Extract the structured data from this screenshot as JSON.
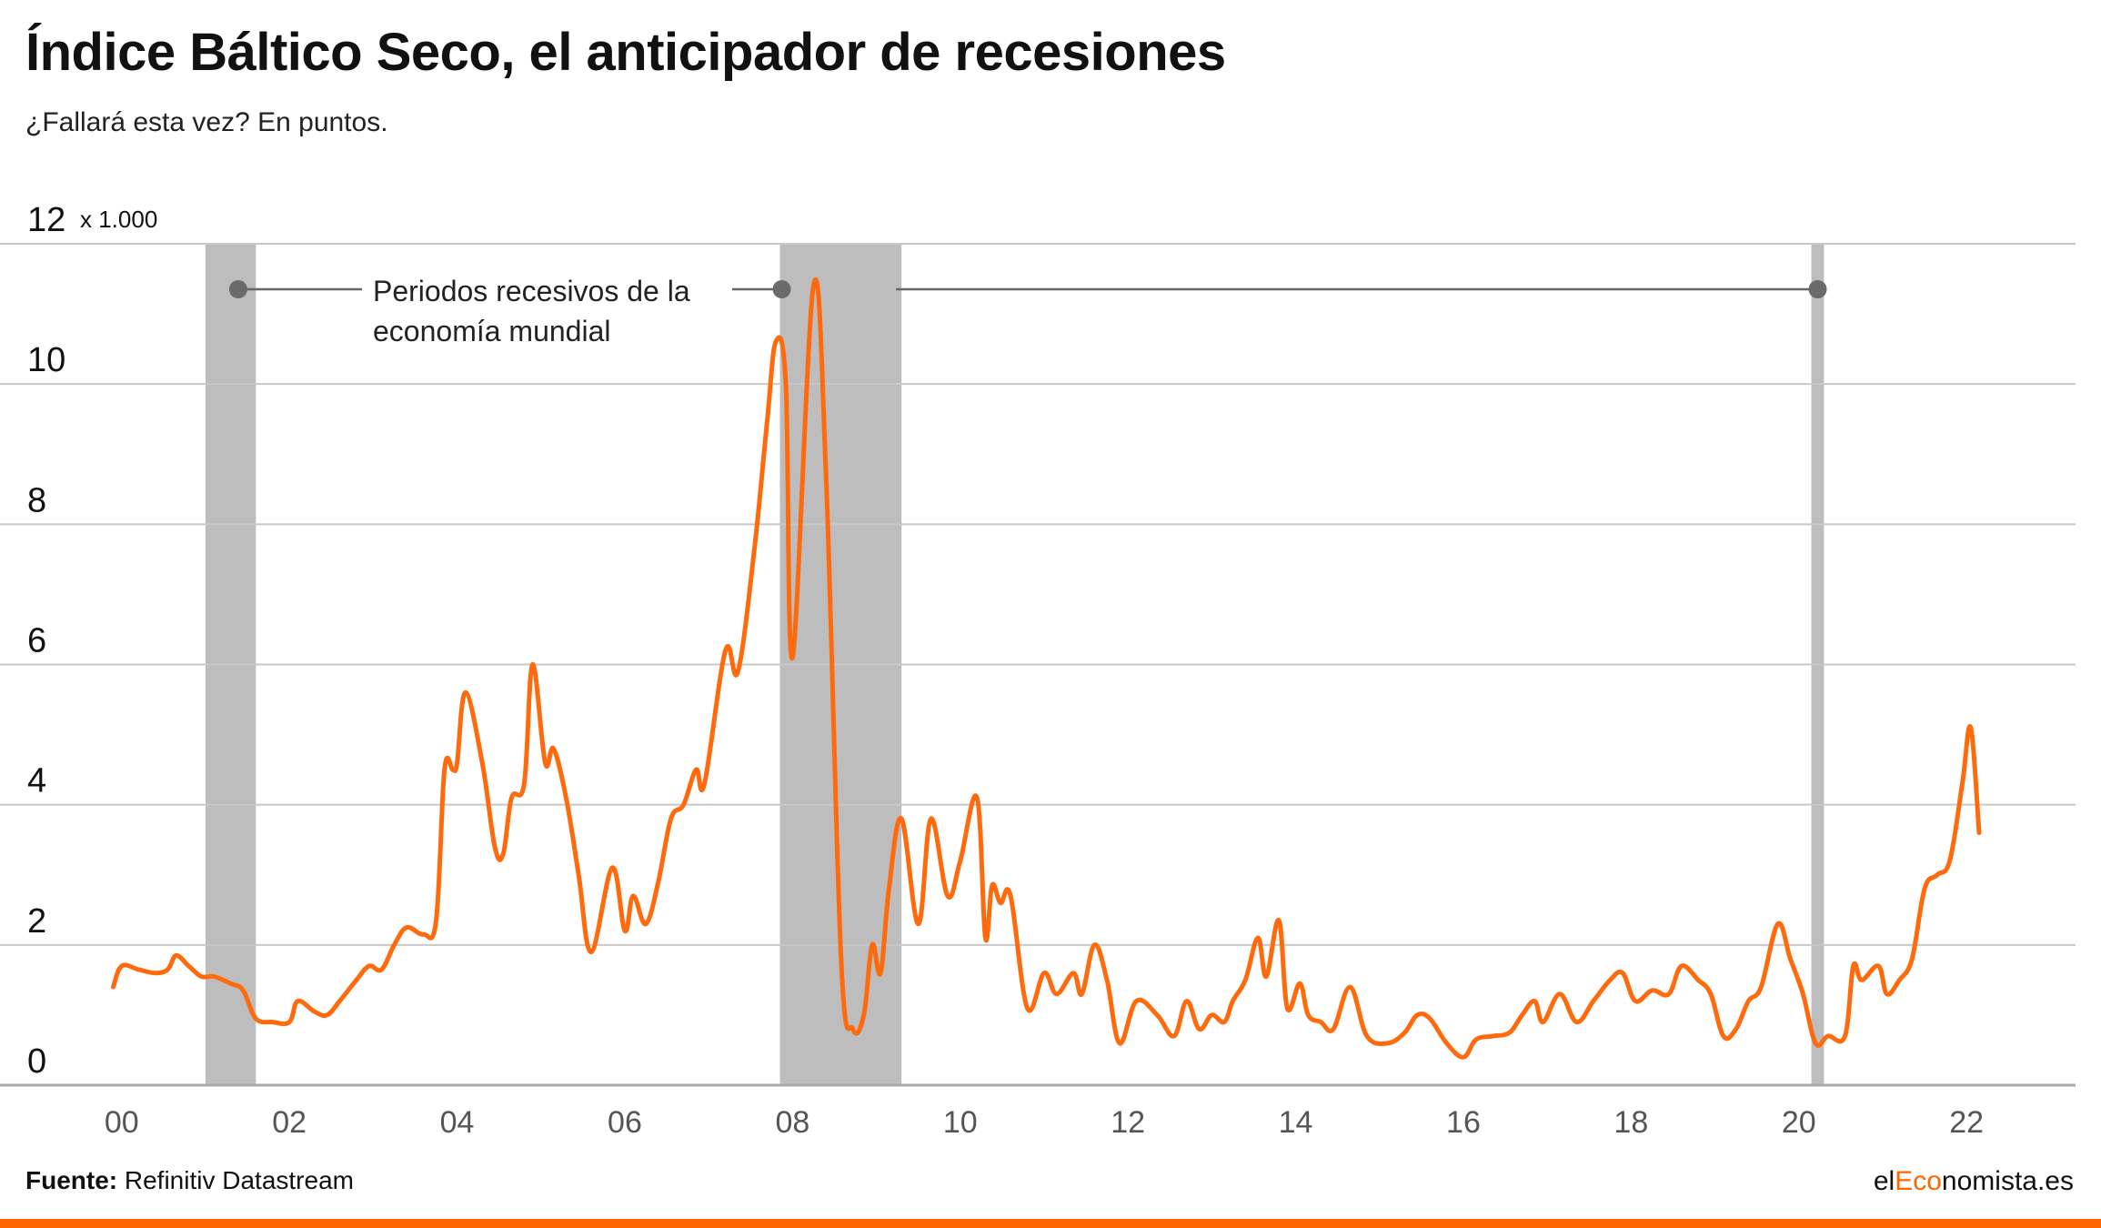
{
  "title": "Índice Báltico Seco, el anticipador de recesiones",
  "subtitle": "¿Fallará esta vez? En puntos.",
  "annotation": {
    "line1": "Periodos recesivos de la",
    "line2": "economía mundial"
  },
  "footer": {
    "source_label": "Fuente:",
    "source_text": "Refinitiv Datastream",
    "brand_prefix": "el",
    "brand_accent": "Eco",
    "brand_suffix": "nomista.es"
  },
  "colors": {
    "line": "#ff6a0d",
    "band": "#bdbdbd",
    "grid": "#c8c8c8",
    "accent": "#ff6600"
  },
  "chart_data": {
    "type": "line",
    "title": "Índice Báltico Seco, el anticipador de recesiones",
    "subtitle": "¿Fallará esta vez? En puntos.",
    "unit_label": "x 1.000",
    "ylim": [
      0,
      12
    ],
    "yticks": [
      0,
      2,
      4,
      6,
      8,
      10,
      12
    ],
    "xlim": [
      1999.2,
      2023.3
    ],
    "xticks": [
      {
        "x": 2000,
        "label": "00"
      },
      {
        "x": 2002,
        "label": "02"
      },
      {
        "x": 2004,
        "label": "04"
      },
      {
        "x": 2006,
        "label": "06"
      },
      {
        "x": 2008,
        "label": "08"
      },
      {
        "x": 2010,
        "label": "10"
      },
      {
        "x": 2012,
        "label": "12"
      },
      {
        "x": 2014,
        "label": "14"
      },
      {
        "x": 2016,
        "label": "16"
      },
      {
        "x": 2018,
        "label": "18"
      },
      {
        "x": 2020,
        "label": "20"
      },
      {
        "x": 2022,
        "label": "22"
      }
    ],
    "grid": true,
    "recessions": [
      {
        "start": 2001.0,
        "end": 2001.6
      },
      {
        "start": 2007.85,
        "end": 2009.3
      },
      {
        "start": 2020.15,
        "end": 2020.3
      }
    ],
    "series": [
      {
        "values": [
          [
            1999.9,
            1.4
          ],
          [
            2000.0,
            1.7
          ],
          [
            2000.2,
            1.65
          ],
          [
            2000.4,
            1.6
          ],
          [
            2000.55,
            1.65
          ],
          [
            2000.65,
            1.85
          ],
          [
            2000.8,
            1.7
          ],
          [
            2000.95,
            1.55
          ],
          [
            2001.1,
            1.55
          ],
          [
            2001.3,
            1.45
          ],
          [
            2001.45,
            1.35
          ],
          [
            2001.6,
            0.95
          ],
          [
            2001.8,
            0.9
          ],
          [
            2002.0,
            0.9
          ],
          [
            2002.1,
            1.2
          ],
          [
            2002.3,
            1.05
          ],
          [
            2002.45,
            1.0
          ],
          [
            2002.6,
            1.2
          ],
          [
            2002.8,
            1.5
          ],
          [
            2002.95,
            1.7
          ],
          [
            2003.1,
            1.65
          ],
          [
            2003.25,
            2.0
          ],
          [
            2003.4,
            2.25
          ],
          [
            2003.6,
            2.15
          ],
          [
            2003.75,
            2.35
          ],
          [
            2003.85,
            4.5
          ],
          [
            2003.95,
            4.5
          ],
          [
            2004.0,
            4.6
          ],
          [
            2004.1,
            5.6
          ],
          [
            2004.3,
            4.6
          ],
          [
            2004.45,
            3.4
          ],
          [
            2004.55,
            3.3
          ],
          [
            2004.65,
            4.1
          ],
          [
            2004.8,
            4.3
          ],
          [
            2004.9,
            6.0
          ],
          [
            2005.05,
            4.6
          ],
          [
            2005.15,
            4.8
          ],
          [
            2005.3,
            4.1
          ],
          [
            2005.45,
            3.0
          ],
          [
            2005.6,
            1.9
          ],
          [
            2005.85,
            3.1
          ],
          [
            2006.0,
            2.2
          ],
          [
            2006.1,
            2.7
          ],
          [
            2006.25,
            2.3
          ],
          [
            2006.4,
            2.9
          ],
          [
            2006.55,
            3.8
          ],
          [
            2006.7,
            4.0
          ],
          [
            2006.85,
            4.5
          ],
          [
            2006.95,
            4.3
          ],
          [
            2007.2,
            6.2
          ],
          [
            2007.35,
            5.9
          ],
          [
            2007.55,
            7.7
          ],
          [
            2007.7,
            9.5
          ],
          [
            2007.8,
            10.6
          ],
          [
            2007.92,
            10.0
          ],
          [
            2008.0,
            6.1
          ],
          [
            2008.25,
            11.4
          ],
          [
            2008.4,
            8.7
          ],
          [
            2008.58,
            1.8
          ],
          [
            2008.72,
            0.8
          ],
          [
            2008.85,
            1.0
          ],
          [
            2008.95,
            2.0
          ],
          [
            2009.05,
            1.6
          ],
          [
            2009.15,
            2.8
          ],
          [
            2009.3,
            3.8
          ],
          [
            2009.5,
            2.3
          ],
          [
            2009.65,
            3.8
          ],
          [
            2009.85,
            2.7
          ],
          [
            2010.0,
            3.2
          ],
          [
            2010.2,
            4.1
          ],
          [
            2010.3,
            2.1
          ],
          [
            2010.38,
            2.85
          ],
          [
            2010.48,
            2.6
          ],
          [
            2010.6,
            2.7
          ],
          [
            2010.8,
            1.1
          ],
          [
            2011.0,
            1.6
          ],
          [
            2011.15,
            1.3
          ],
          [
            2011.35,
            1.6
          ],
          [
            2011.45,
            1.3
          ],
          [
            2011.6,
            2.0
          ],
          [
            2011.75,
            1.5
          ],
          [
            2011.9,
            0.6
          ],
          [
            2012.1,
            1.2
          ],
          [
            2012.35,
            1.0
          ],
          [
            2012.55,
            0.7
          ],
          [
            2012.7,
            1.2
          ],
          [
            2012.85,
            0.8
          ],
          [
            2013.0,
            1.0
          ],
          [
            2013.15,
            0.9
          ],
          [
            2013.25,
            1.2
          ],
          [
            2013.4,
            1.5
          ],
          [
            2013.55,
            2.1
          ],
          [
            2013.65,
            1.55
          ],
          [
            2013.8,
            2.35
          ],
          [
            2013.9,
            1.1
          ],
          [
            2014.05,
            1.45
          ],
          [
            2014.15,
            1.0
          ],
          [
            2014.3,
            0.9
          ],
          [
            2014.45,
            0.8
          ],
          [
            2014.65,
            1.4
          ],
          [
            2014.85,
            0.7
          ],
          [
            2015.1,
            0.6
          ],
          [
            2015.3,
            0.75
          ],
          [
            2015.45,
            1.0
          ],
          [
            2015.6,
            0.95
          ],
          [
            2015.8,
            0.6
          ],
          [
            2016.0,
            0.4
          ],
          [
            2016.15,
            0.65
          ],
          [
            2016.35,
            0.7
          ],
          [
            2016.55,
            0.75
          ],
          [
            2016.7,
            1.0
          ],
          [
            2016.85,
            1.2
          ],
          [
            2016.95,
            0.9
          ],
          [
            2017.15,
            1.3
          ],
          [
            2017.35,
            0.9
          ],
          [
            2017.55,
            1.2
          ],
          [
            2017.75,
            1.5
          ],
          [
            2017.9,
            1.6
          ],
          [
            2018.05,
            1.2
          ],
          [
            2018.25,
            1.35
          ],
          [
            2018.45,
            1.3
          ],
          [
            2018.6,
            1.7
          ],
          [
            2018.8,
            1.5
          ],
          [
            2018.95,
            1.3
          ],
          [
            2019.1,
            0.7
          ],
          [
            2019.25,
            0.8
          ],
          [
            2019.4,
            1.2
          ],
          [
            2019.55,
            1.4
          ],
          [
            2019.75,
            2.3
          ],
          [
            2019.9,
            1.8
          ],
          [
            2020.05,
            1.3
          ],
          [
            2020.2,
            0.6
          ],
          [
            2020.35,
            0.7
          ],
          [
            2020.55,
            0.7
          ],
          [
            2020.65,
            1.7
          ],
          [
            2020.75,
            1.5
          ],
          [
            2020.95,
            1.7
          ],
          [
            2021.05,
            1.3
          ],
          [
            2021.2,
            1.5
          ],
          [
            2021.35,
            1.8
          ],
          [
            2021.5,
            2.8
          ],
          [
            2021.65,
            3.0
          ],
          [
            2021.8,
            3.2
          ],
          [
            2021.95,
            4.3
          ],
          [
            2022.05,
            5.1
          ],
          [
            2022.15,
            3.6
          ]
        ]
      }
    ]
  }
}
